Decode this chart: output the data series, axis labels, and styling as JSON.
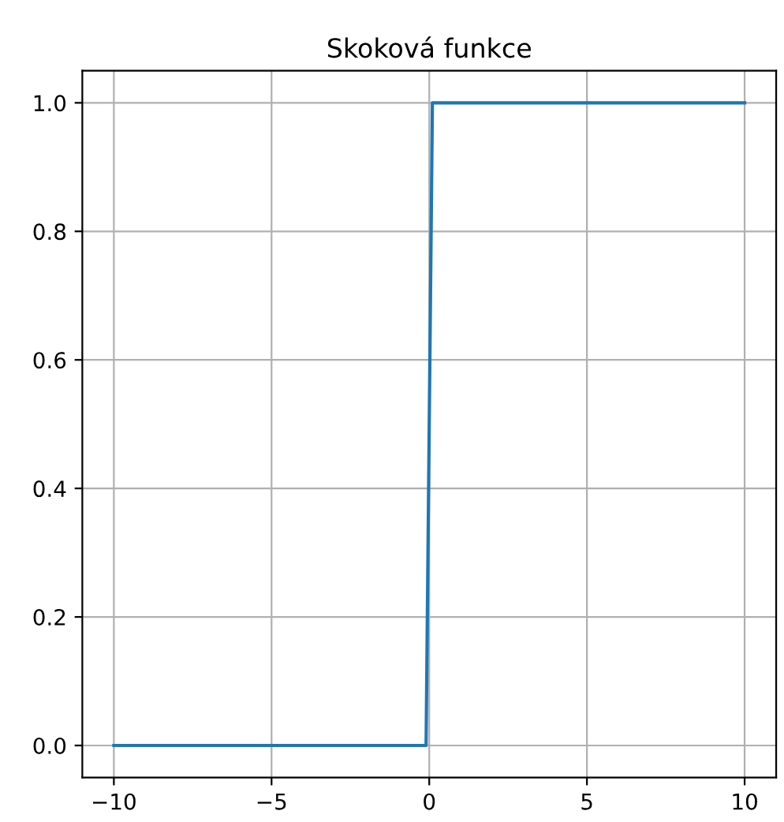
{
  "chart_data": {
    "type": "line",
    "title": "Skoková funkce",
    "series": [
      {
        "color": "#1f77b4",
        "x": [
          -10,
          -0.1,
          0.1,
          10
        ],
        "values": [
          0,
          0,
          1,
          1
        ]
      }
    ],
    "xlim": [
      -11,
      11
    ],
    "ylim": [
      -0.05,
      1.05
    ],
    "xticks": [
      {
        "value": -10,
        "label": "−10"
      },
      {
        "value": -5,
        "label": "−5"
      },
      0,
      5,
      10
    ],
    "yticks": [
      {
        "value": 0,
        "label": "0.0"
      },
      {
        "value": 0.2,
        "label": "0.2"
      },
      {
        "value": 0.4,
        "label": "0.4"
      },
      {
        "value": 0.6,
        "label": "0.6"
      },
      {
        "value": 0.8,
        "label": "0.8"
      },
      {
        "value": 1,
        "label": "1.0"
      }
    ],
    "grid": true,
    "line_style": "solid"
  }
}
